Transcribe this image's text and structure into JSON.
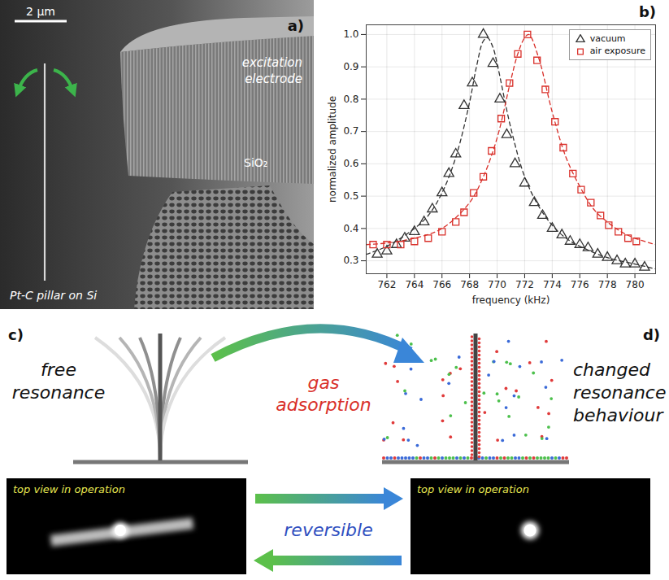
{
  "panel_a": {
    "label": "a)",
    "scale_bar": "2 µm",
    "electrode": "excitation electrode",
    "layer": "SiO₂",
    "pillar": "Pt-C pillar on Si"
  },
  "chart_data": {
    "type": "scatter",
    "panel_label": "b)",
    "x_label": "frequency (kHz)",
    "y_label": "normalized amplitude",
    "xlim": [
      760.5,
      781.5
    ],
    "xticks": [
      762,
      764,
      766,
      768,
      770,
      772,
      774,
      776,
      778,
      780
    ],
    "ylim": [
      0.26,
      1.03
    ],
    "yticks": [
      0.3,
      0.4,
      0.5,
      0.6,
      0.7,
      0.8,
      0.9,
      {
        "value": 1,
        "label": "1.0"
      }
    ],
    "grid": true,
    "legend": "top-right",
    "series": [
      {
        "name": "vacuum",
        "color": "#333333",
        "marker": "triangle",
        "x": [
          761.3,
          762,
          762.7,
          763.3,
          764,
          764.7,
          765.3,
          766,
          766.5,
          767,
          767.6,
          768.2,
          769,
          769.7,
          770.2,
          770.7,
          771.3,
          772,
          772.7,
          773.3,
          774,
          774.7,
          775.3,
          776,
          776.6,
          777.3,
          778,
          778.7,
          779.3,
          780,
          780.7
        ],
        "values": [
          0.32,
          0.33,
          0.35,
          0.37,
          0.39,
          0.42,
          0.46,
          0.51,
          0.57,
          0.63,
          0.78,
          0.85,
          1.0,
          0.91,
          0.8,
          0.69,
          0.6,
          0.54,
          0.48,
          0.44,
          0.4,
          0.38,
          0.36,
          0.35,
          0.34,
          0.32,
          0.31,
          0.3,
          0.29,
          0.29,
          0.28
        ],
        "fit": {
          "line_style": "dashed",
          "x": [
            760.5,
            762,
            764,
            765,
            766,
            767,
            768,
            768.5,
            769,
            769.3,
            769.7,
            770,
            771,
            772,
            773,
            774,
            775,
            776,
            778,
            780,
            781.5
          ],
          "values": [
            0.32,
            0.345,
            0.4,
            0.44,
            0.51,
            0.62,
            0.79,
            0.9,
            0.98,
            0.99,
            0.96,
            0.91,
            0.71,
            0.56,
            0.47,
            0.41,
            0.37,
            0.345,
            0.31,
            0.29,
            0.275
          ]
        }
      },
      {
        "name": "air exposure",
        "color": "#d9302a",
        "marker": "square",
        "x": [
          761,
          762,
          763,
          764,
          765,
          766,
          767,
          767.6,
          768.3,
          769,
          769.6,
          770.3,
          770.9,
          771.5,
          772.2,
          772.9,
          773.5,
          774.2,
          774.8,
          775.5,
          776.1,
          776.8,
          777.5,
          778.1,
          778.8,
          779.5,
          780.1
        ],
        "values": [
          0.35,
          0.35,
          0.35,
          0.36,
          0.37,
          0.39,
          0.42,
          0.45,
          0.51,
          0.56,
          0.64,
          0.74,
          0.85,
          0.94,
          1.0,
          0.92,
          0.83,
          0.73,
          0.65,
          0.57,
          0.52,
          0.48,
          0.44,
          0.41,
          0.39,
          0.37,
          0.36
        ],
        "fit": {
          "line_style": "dashed",
          "x": [
            760.5,
            762,
            764,
            766,
            768,
            769,
            770,
            771,
            771.5,
            772,
            772.3,
            773,
            774,
            775,
            776,
            777,
            778,
            779,
            780,
            781.5
          ],
          "values": [
            0.35,
            0.355,
            0.37,
            0.4,
            0.48,
            0.56,
            0.68,
            0.86,
            0.94,
            0.99,
            1.0,
            0.93,
            0.76,
            0.62,
            0.53,
            0.46,
            0.42,
            0.39,
            0.37,
            0.35
          ]
        }
      }
    ]
  },
  "panel_c": {
    "label": "c)",
    "text": "free resonance",
    "image_caption": "top view in operation"
  },
  "panel_d": {
    "label": "d)",
    "text": "changed resonance behaviour",
    "image_caption": "top view in operation"
  },
  "transition": "gas adsorption",
  "return": "reversible"
}
